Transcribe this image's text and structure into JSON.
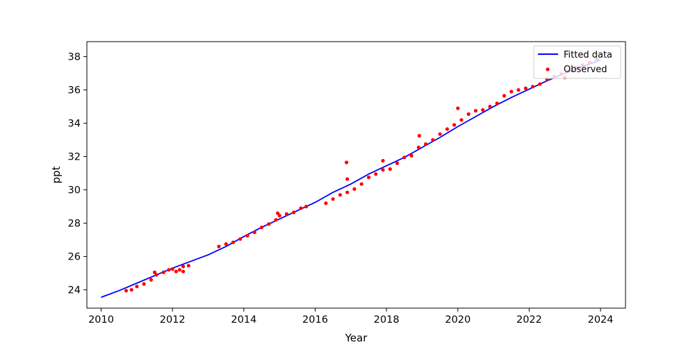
{
  "chart_data": {
    "type": "line",
    "xlabel": "Year",
    "ylabel": "ppt",
    "xlim": [
      2009.6,
      2024.7
    ],
    "ylim": [
      22.9,
      38.9
    ],
    "xticks": [
      2010,
      2012,
      2014,
      2016,
      2018,
      2020,
      2022,
      2024
    ],
    "yticks": [
      24,
      26,
      28,
      30,
      32,
      34,
      36,
      38
    ],
    "grid": false,
    "legend_position": "top-right",
    "series": [
      {
        "name": "Fitted data",
        "kind": "line",
        "color": "#0000ff",
        "x": [
          2010.0,
          2010.5,
          2011.0,
          2011.5,
          2012.0,
          2012.5,
          2013.0,
          2013.5,
          2014.0,
          2014.5,
          2015.0,
          2015.5,
          2016.0,
          2016.5,
          2017.0,
          2017.5,
          2018.0,
          2018.5,
          2019.0,
          2019.5,
          2020.0,
          2020.5,
          2021.0,
          2021.5,
          2022.0,
          2022.5,
          2023.0,
          2023.5,
          2024.0
        ],
        "y": [
          23.55,
          23.95,
          24.4,
          24.85,
          25.3,
          25.7,
          26.1,
          26.6,
          27.2,
          27.75,
          28.25,
          28.75,
          29.25,
          29.85,
          30.35,
          30.95,
          31.45,
          31.95,
          32.55,
          33.15,
          33.8,
          34.4,
          35.0,
          35.55,
          36.05,
          36.55,
          37.0,
          37.4,
          37.8
        ]
      },
      {
        "name": "Observed",
        "kind": "scatter",
        "color": "#ff0000",
        "x": [
          2010.7,
          2010.85,
          2011.0,
          2011.2,
          2011.4,
          2011.55,
          2011.75,
          2011.9,
          2012.0,
          2012.1,
          2012.2,
          2012.3,
          2012.45,
          2013.3,
          2013.5,
          2013.7,
          2013.9,
          2014.1,
          2014.3,
          2014.5,
          2014.7,
          2014.9,
          2015.0,
          2015.2,
          2015.4,
          2015.6,
          2015.75,
          2016.3,
          2016.5,
          2016.7,
          2016.9,
          2017.1,
          2017.3,
          2017.5,
          2017.7,
          2017.9,
          2018.1,
          2018.3,
          2018.5,
          2018.7,
          2018.9,
          2019.1,
          2019.3,
          2019.5,
          2019.7,
          2019.9,
          2020.1,
          2020.3,
          2020.5,
          2020.7,
          2020.9,
          2021.1,
          2021.3,
          2021.5,
          2021.7,
          2021.9,
          2022.1,
          2022.3,
          2022.5,
          2022.7,
          2022.9,
          2023.1,
          2023.3,
          2023.5,
          2023.7,
          2023.9,
          2016.88,
          2016.9,
          2017.9,
          2018.92,
          2020.0,
          2012.3,
          2011.5,
          2014.95,
          2023.0
        ],
        "y": [
          23.95,
          24.0,
          24.2,
          24.35,
          24.6,
          24.9,
          25.05,
          25.2,
          25.25,
          25.1,
          25.2,
          25.4,
          25.45,
          26.6,
          26.75,
          26.85,
          27.05,
          27.25,
          27.45,
          27.75,
          27.95,
          28.2,
          28.45,
          28.55,
          28.65,
          28.9,
          29.0,
          29.2,
          29.45,
          29.7,
          29.85,
          30.05,
          30.35,
          30.75,
          30.95,
          31.2,
          31.25,
          31.6,
          31.95,
          32.05,
          32.55,
          32.75,
          33.0,
          33.35,
          33.65,
          33.9,
          34.2,
          34.55,
          34.75,
          34.8,
          35.0,
          35.2,
          35.65,
          35.9,
          36.0,
          36.1,
          36.2,
          36.35,
          36.65,
          36.8,
          36.95,
          37.15,
          37.35,
          37.5,
          37.65,
          37.85,
          31.65,
          30.65,
          31.75,
          33.25,
          34.9,
          25.1,
          25.05,
          28.6,
          36.75
        ]
      }
    ]
  }
}
